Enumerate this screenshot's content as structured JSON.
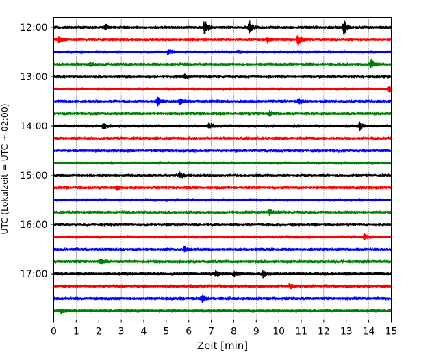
{
  "chart_data": {
    "type": "line",
    "xlabel": "Zeit  [min]",
    "ylabel": "UTC (Lokalzeit = UTC + 02:00)",
    "xlim": [
      0,
      15
    ],
    "x_ticks": [
      0,
      1,
      2,
      3,
      4,
      5,
      6,
      7,
      8,
      9,
      10,
      11,
      12,
      13,
      14,
      15
    ],
    "y_tick_labels": [
      "12:00",
      "13:00",
      "14:00",
      "15:00",
      "16:00",
      "17:00"
    ],
    "grid": "vertical-dotted",
    "color_cycle": [
      "#000000",
      "#ff0000",
      "#0000ff",
      "#008000"
    ],
    "rows": [
      {
        "time": "12:00",
        "color": "#000000",
        "events": [
          {
            "t": 6.7,
            "amp": 1.0
          },
          {
            "t": 8.7,
            "amp": 0.85
          },
          {
            "t": 12.9,
            "amp": 1.0
          },
          {
            "t": 2.3,
            "amp": 0.35
          }
        ]
      },
      {
        "time": "12:15",
        "color": "#ff0000",
        "events": [
          {
            "t": 0.2,
            "amp": 0.6
          },
          {
            "t": 10.85,
            "amp": 0.75
          },
          {
            "t": 9.5,
            "amp": 0.3
          }
        ]
      },
      {
        "time": "12:30",
        "color": "#0000ff",
        "events": [
          {
            "t": 5.1,
            "amp": 0.45
          },
          {
            "t": 8.2,
            "amp": 0.25
          }
        ]
      },
      {
        "time": "12:45",
        "color": "#008000",
        "events": [
          {
            "t": 14.1,
            "amp": 0.7
          },
          {
            "t": 1.6,
            "amp": 0.3
          }
        ]
      },
      {
        "time": "13:00",
        "color": "#000000",
        "events": [
          {
            "t": 5.8,
            "amp": 0.3
          }
        ]
      },
      {
        "time": "13:15",
        "color": "#ff0000",
        "events": [
          {
            "t": 14.9,
            "amp": 0.35
          }
        ]
      },
      {
        "time": "13:30",
        "color": "#0000ff",
        "events": [
          {
            "t": 4.6,
            "amp": 0.6
          },
          {
            "t": 5.6,
            "amp": 0.45
          },
          {
            "t": 10.9,
            "amp": 0.35
          }
        ]
      },
      {
        "time": "13:45",
        "color": "#008000",
        "events": [
          {
            "t": 9.6,
            "amp": 0.3
          }
        ]
      },
      {
        "time": "14:00",
        "color": "#000000",
        "events": [
          {
            "t": 2.2,
            "amp": 0.4
          },
          {
            "t": 6.9,
            "amp": 0.45
          },
          {
            "t": 13.6,
            "amp": 0.5
          }
        ]
      },
      {
        "time": "14:15",
        "color": "#ff0000",
        "events": []
      },
      {
        "time": "14:30",
        "color": "#0000ff",
        "events": []
      },
      {
        "time": "14:45",
        "color": "#008000",
        "events": []
      },
      {
        "time": "15:00",
        "color": "#000000",
        "events": [
          {
            "t": 5.6,
            "amp": 0.5
          }
        ]
      },
      {
        "time": "15:15",
        "color": "#ff0000",
        "events": [
          {
            "t": 2.8,
            "amp": 0.3
          }
        ]
      },
      {
        "time": "15:30",
        "color": "#0000ff",
        "events": []
      },
      {
        "time": "15:45",
        "color": "#008000",
        "events": [
          {
            "t": 9.6,
            "amp": 0.3
          }
        ]
      },
      {
        "time": "16:00",
        "color": "#000000",
        "events": []
      },
      {
        "time": "16:15",
        "color": "#ff0000",
        "events": [
          {
            "t": 13.8,
            "amp": 0.3
          }
        ]
      },
      {
        "time": "16:30",
        "color": "#0000ff",
        "events": [
          {
            "t": 5.8,
            "amp": 0.3
          }
        ]
      },
      {
        "time": "16:45",
        "color": "#008000",
        "events": [
          {
            "t": 2.1,
            "amp": 0.25
          }
        ]
      },
      {
        "time": "17:00",
        "color": "#000000",
        "events": [
          {
            "t": 7.2,
            "amp": 0.35
          },
          {
            "t": 8.0,
            "amp": 0.3
          },
          {
            "t": 9.3,
            "amp": 0.4
          }
        ]
      },
      {
        "time": "17:15",
        "color": "#ff0000",
        "events": [
          {
            "t": 10.5,
            "amp": 0.3
          }
        ]
      },
      {
        "time": "17:30",
        "color": "#0000ff",
        "events": [
          {
            "t": 6.6,
            "amp": 0.4
          }
        ]
      },
      {
        "time": "17:45",
        "color": "#008000",
        "events": [
          {
            "t": 0.3,
            "amp": 0.3
          }
        ]
      }
    ]
  }
}
